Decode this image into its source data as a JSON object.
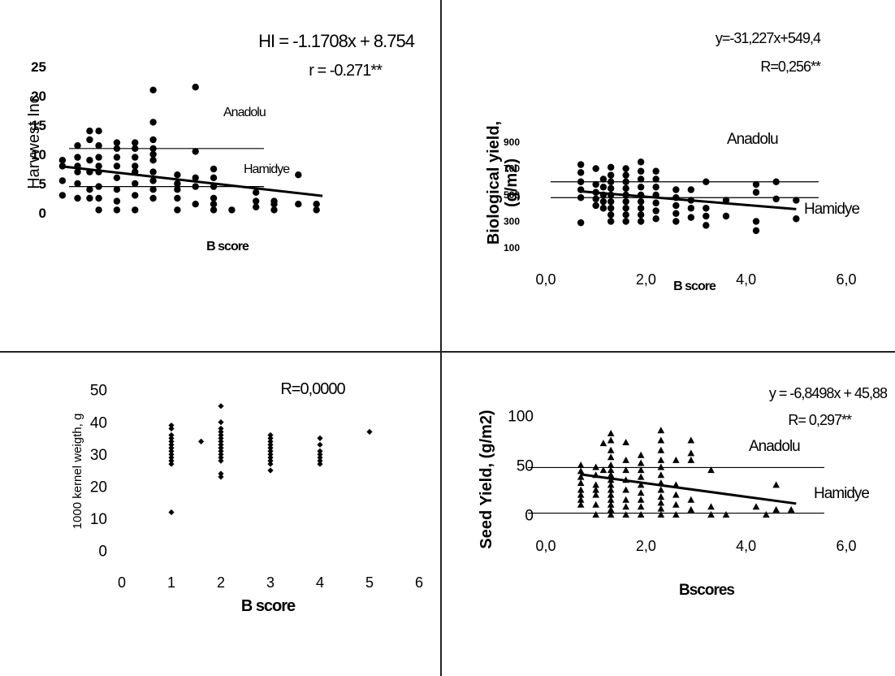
{
  "chart_data": [
    {
      "type": "scatter",
      "panel": "top-left",
      "title": "",
      "xlabel": "B score",
      "ylabel": "Harvwest Inc",
      "xlim": [
        0.5,
        5.2
      ],
      "ylim": [
        0,
        25
      ],
      "yticks": [
        0,
        5,
        10,
        15,
        20,
        25
      ],
      "xticks": [],
      "equation": "HI = -1.1708x + 8.754",
      "r_label": "r = -0.271**",
      "ref_lines": [
        {
          "name": "Anadolu",
          "y": 11
        },
        {
          "name": "Hamidye",
          "y": 4.5
        }
      ],
      "trend": {
        "slope": -1.1708,
        "intercept": 8.754
      },
      "marker": "circle",
      "points": [
        [
          0.7,
          3
        ],
        [
          0.7,
          5.5
        ],
        [
          0.7,
          8
        ],
        [
          0.7,
          9
        ],
        [
          0.95,
          2.5
        ],
        [
          0.95,
          5
        ],
        [
          0.95,
          7
        ],
        [
          0.95,
          8
        ],
        [
          0.95,
          9.5
        ],
        [
          0.95,
          11.5
        ],
        [
          1.15,
          2.5
        ],
        [
          1.15,
          4
        ],
        [
          1.15,
          7
        ],
        [
          1.15,
          9
        ],
        [
          1.15,
          12.5
        ],
        [
          1.15,
          14
        ],
        [
          1.3,
          0.5
        ],
        [
          1.3,
          2.5
        ],
        [
          1.3,
          4.5
        ],
        [
          1.3,
          7
        ],
        [
          1.3,
          8
        ],
        [
          1.3,
          9.5
        ],
        [
          1.3,
          11.5
        ],
        [
          1.3,
          14
        ],
        [
          1.6,
          0.5
        ],
        [
          1.6,
          2
        ],
        [
          1.6,
          4
        ],
        [
          1.6,
          6
        ],
        [
          1.6,
          8
        ],
        [
          1.6,
          9.5
        ],
        [
          1.6,
          11
        ],
        [
          1.6,
          12
        ],
        [
          1.9,
          0.5
        ],
        [
          1.9,
          3
        ],
        [
          1.9,
          5
        ],
        [
          1.9,
          7
        ],
        [
          1.9,
          8
        ],
        [
          1.9,
          9.5
        ],
        [
          1.9,
          11
        ],
        [
          1.9,
          12
        ],
        [
          2.2,
          2.5
        ],
        [
          2.2,
          4
        ],
        [
          2.2,
          5.5
        ],
        [
          2.2,
          7
        ],
        [
          2.2,
          9
        ],
        [
          2.2,
          10
        ],
        [
          2.2,
          11
        ],
        [
          2.2,
          12.5
        ],
        [
          2.2,
          15.5
        ],
        [
          2.2,
          21
        ],
        [
          2.6,
          0.5
        ],
        [
          2.6,
          2.5
        ],
        [
          2.6,
          4
        ],
        [
          2.6,
          5
        ],
        [
          2.6,
          6.5
        ],
        [
          2.9,
          1.5
        ],
        [
          2.9,
          4.5
        ],
        [
          2.9,
          6
        ],
        [
          2.9,
          10.5
        ],
        [
          2.9,
          21.5
        ],
        [
          3.2,
          0.5
        ],
        [
          3.2,
          1.5
        ],
        [
          3.2,
          2.5
        ],
        [
          3.2,
          4.5
        ],
        [
          3.2,
          6
        ],
        [
          3.2,
          7.5
        ],
        [
          3.5,
          0.5
        ],
        [
          3.9,
          1
        ],
        [
          3.9,
          2
        ],
        [
          3.9,
          3.5
        ],
        [
          4.2,
          0.5
        ],
        [
          4.2,
          1.5
        ],
        [
          4.2,
          2
        ],
        [
          4.6,
          1.5
        ],
        [
          4.6,
          6.5
        ],
        [
          4.9,
          0.5
        ],
        [
          4.9,
          1.5
        ]
      ]
    },
    {
      "type": "scatter",
      "panel": "top-right",
      "title": "",
      "xlabel": "B score",
      "ylabel": "Biological yield, (g/m2)",
      "xlim": [
        0,
        6
      ],
      "ylim": [
        100,
        900
      ],
      "yticks": [
        100,
        300,
        500,
        700,
        900
      ],
      "xticks": [
        "0,0",
        "2,0",
        "4,0",
        "6,0"
      ],
      "equation": "y=-31,227x+549,4",
      "r_label": "R=0,256**",
      "ref_lines": [
        {
          "name": "Anadolu",
          "y": 600
        },
        {
          "name": "Hamidye",
          "y": 480
        }
      ],
      "trend": {
        "slope": -31.227,
        "intercept": 549.4
      },
      "marker": "circle",
      "points": [
        [
          0.7,
          290
        ],
        [
          0.7,
          480
        ],
        [
          0.7,
          540
        ],
        [
          0.7,
          600
        ],
        [
          0.7,
          670
        ],
        [
          0.7,
          730
        ],
        [
          1.0,
          420
        ],
        [
          1.0,
          470
        ],
        [
          1.0,
          520
        ],
        [
          1.0,
          580
        ],
        [
          1.0,
          700
        ],
        [
          1.15,
          400
        ],
        [
          1.15,
          450
        ],
        [
          1.15,
          500
        ],
        [
          1.15,
          560
        ],
        [
          1.15,
          620
        ],
        [
          1.3,
          300
        ],
        [
          1.3,
          350
        ],
        [
          1.3,
          400
        ],
        [
          1.3,
          450
        ],
        [
          1.3,
          500
        ],
        [
          1.3,
          550
        ],
        [
          1.3,
          600
        ],
        [
          1.3,
          650
        ],
        [
          1.3,
          710
        ],
        [
          1.6,
          300
        ],
        [
          1.6,
          350
        ],
        [
          1.6,
          400
        ],
        [
          1.6,
          450
        ],
        [
          1.6,
          500
        ],
        [
          1.6,
          550
        ],
        [
          1.6,
          600
        ],
        [
          1.6,
          650
        ],
        [
          1.6,
          700
        ],
        [
          1.9,
          300
        ],
        [
          1.9,
          350
        ],
        [
          1.9,
          400
        ],
        [
          1.9,
          450
        ],
        [
          1.9,
          500
        ],
        [
          1.9,
          560
        ],
        [
          1.9,
          620
        ],
        [
          1.9,
          680
        ],
        [
          1.9,
          750
        ],
        [
          2.2,
          320
        ],
        [
          2.2,
          380
        ],
        [
          2.2,
          440
        ],
        [
          2.2,
          500
        ],
        [
          2.2,
          560
        ],
        [
          2.2,
          620
        ],
        [
          2.2,
          680
        ],
        [
          2.6,
          300
        ],
        [
          2.6,
          360
        ],
        [
          2.6,
          420
        ],
        [
          2.6,
          480
        ],
        [
          2.6,
          540
        ],
        [
          2.9,
          330
        ],
        [
          2.9,
          400
        ],
        [
          2.9,
          460
        ],
        [
          2.9,
          540
        ],
        [
          3.2,
          270
        ],
        [
          3.2,
          340
        ],
        [
          3.2,
          400
        ],
        [
          3.2,
          600
        ],
        [
          3.6,
          340
        ],
        [
          3.6,
          460
        ],
        [
          4.2,
          230
        ],
        [
          4.2,
          300
        ],
        [
          4.2,
          520
        ],
        [
          4.2,
          580
        ],
        [
          4.6,
          470
        ],
        [
          4.6,
          600
        ],
        [
          5.0,
          320
        ],
        [
          5.0,
          460
        ]
      ]
    },
    {
      "type": "scatter",
      "panel": "bottom-left",
      "title": "",
      "xlabel": "B score",
      "ylabel": "1000 kernel weigth, g",
      "xlim": [
        0,
        6
      ],
      "ylim": [
        0,
        50
      ],
      "yticks": [
        0,
        10,
        20,
        30,
        40,
        50
      ],
      "xticks": [
        "0",
        "1",
        "2",
        "3",
        "4",
        "5",
        "6"
      ],
      "equation": "",
      "r_label": "R=0,0000",
      "ref_lines": [],
      "marker": "diamond",
      "points": [
        [
          1,
          12
        ],
        [
          1,
          27
        ],
        [
          1,
          28
        ],
        [
          1,
          29
        ],
        [
          1,
          30
        ],
        [
          1,
          31
        ],
        [
          1,
          32
        ],
        [
          1,
          33
        ],
        [
          1,
          34
        ],
        [
          1,
          35
        ],
        [
          1,
          36
        ],
        [
          1,
          38
        ],
        [
          1,
          39
        ],
        [
          1.6,
          34
        ],
        [
          2,
          23
        ],
        [
          2,
          24
        ],
        [
          2,
          28
        ],
        [
          2,
          29
        ],
        [
          2,
          30
        ],
        [
          2,
          31
        ],
        [
          2,
          32
        ],
        [
          2,
          33
        ],
        [
          2,
          34
        ],
        [
          2,
          35
        ],
        [
          2,
          36
        ],
        [
          2,
          37
        ],
        [
          2,
          38
        ],
        [
          2,
          40
        ],
        [
          2,
          45
        ],
        [
          3,
          25
        ],
        [
          3,
          27
        ],
        [
          3,
          28
        ],
        [
          3,
          29
        ],
        [
          3,
          30
        ],
        [
          3,
          31
        ],
        [
          3,
          32
        ],
        [
          3,
          33
        ],
        [
          3,
          34
        ],
        [
          3,
          35
        ],
        [
          3,
          36
        ],
        [
          4,
          27
        ],
        [
          4,
          28
        ],
        [
          4,
          29
        ],
        [
          4,
          30
        ],
        [
          4,
          31
        ],
        [
          4,
          33
        ],
        [
          4,
          35
        ],
        [
          5,
          37
        ]
      ]
    },
    {
      "type": "scatter",
      "panel": "bottom-right",
      "title": "",
      "xlabel": "Bscores",
      "ylabel": "Seed Yield, (g/m2)",
      "xlim": [
        0,
        6
      ],
      "ylim": [
        0,
        100
      ],
      "yticks": [
        0,
        50,
        100
      ],
      "xticks": [
        "0,0",
        "2,0",
        "4,0",
        "6,0"
      ],
      "equation": "y = -6,8498x + 45,88",
      "r_label": "R= 0,297**",
      "ref_lines": [
        {
          "name": "Anadolu",
          "y": 48
        },
        {
          "name": "Hamidye",
          "y": 2
        }
      ],
      "trend": {
        "slope": -6.8498,
        "intercept": 45.88
      },
      "marker": "triangle",
      "points": [
        [
          0.7,
          10
        ],
        [
          0.7,
          15
        ],
        [
          0.7,
          20
        ],
        [
          0.7,
          25
        ],
        [
          0.7,
          32
        ],
        [
          0.7,
          38
        ],
        [
          0.7,
          44
        ],
        [
          0.7,
          50
        ],
        [
          1.0,
          0
        ],
        [
          1.0,
          10
        ],
        [
          1.0,
          20
        ],
        [
          1.0,
          25
        ],
        [
          1.0,
          30
        ],
        [
          1.0,
          40
        ],
        [
          1.0,
          48
        ],
        [
          1.15,
          45
        ],
        [
          1.15,
          72
        ],
        [
          1.3,
          0
        ],
        [
          1.3,
          5
        ],
        [
          1.3,
          10
        ],
        [
          1.3,
          15
        ],
        [
          1.3,
          20
        ],
        [
          1.3,
          25
        ],
        [
          1.3,
          30
        ],
        [
          1.3,
          35
        ],
        [
          1.3,
          40
        ],
        [
          1.3,
          45
        ],
        [
          1.3,
          50
        ],
        [
          1.3,
          58
        ],
        [
          1.3,
          65
        ],
        [
          1.3,
          75
        ],
        [
          1.3,
          82
        ],
        [
          1.6,
          0
        ],
        [
          1.6,
          8
        ],
        [
          1.6,
          15
        ],
        [
          1.6,
          25
        ],
        [
          1.6,
          35
        ],
        [
          1.6,
          45
        ],
        [
          1.6,
          55
        ],
        [
          1.6,
          73
        ],
        [
          1.9,
          0
        ],
        [
          1.9,
          8
        ],
        [
          1.9,
          15
        ],
        [
          1.9,
          22
        ],
        [
          1.9,
          30
        ],
        [
          1.9,
          38
        ],
        [
          1.9,
          45
        ],
        [
          1.9,
          52
        ],
        [
          1.9,
          60
        ],
        [
          2.3,
          0
        ],
        [
          2.3,
          6
        ],
        [
          2.3,
          12
        ],
        [
          2.3,
          18
        ],
        [
          2.3,
          25
        ],
        [
          2.3,
          32
        ],
        [
          2.3,
          40
        ],
        [
          2.3,
          48
        ],
        [
          2.3,
          55
        ],
        [
          2.3,
          65
        ],
        [
          2.3,
          75
        ],
        [
          2.3,
          85
        ],
        [
          2.6,
          0
        ],
        [
          2.6,
          10
        ],
        [
          2.6,
          20
        ],
        [
          2.6,
          30
        ],
        [
          2.6,
          55
        ],
        [
          2.9,
          5
        ],
        [
          2.9,
          15
        ],
        [
          2.9,
          55
        ],
        [
          2.9,
          62
        ],
        [
          2.9,
          75
        ],
        [
          3.3,
          0
        ],
        [
          3.3,
          8
        ],
        [
          3.3,
          45
        ],
        [
          3.6,
          0
        ],
        [
          4.2,
          8
        ],
        [
          4.4,
          0
        ],
        [
          4.6,
          5
        ],
        [
          4.6,
          30
        ],
        [
          4.9,
          5
        ]
      ]
    }
  ]
}
